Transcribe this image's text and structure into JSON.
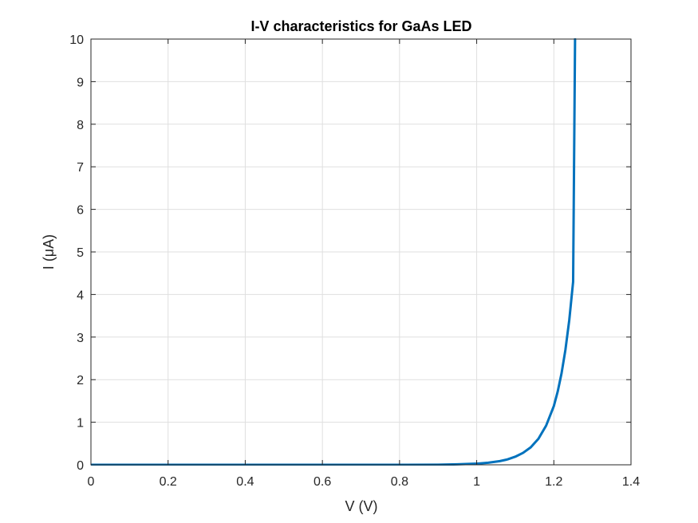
{
  "chart_data": {
    "type": "line",
    "title": "I-V characteristics for GaAs LED",
    "xlabel": "V (V)",
    "ylabel": "I (μA)",
    "xlim": [
      0,
      1.4
    ],
    "ylim": [
      0,
      10
    ],
    "xticks": [
      "0",
      "0.2",
      "0.4",
      "0.6",
      "0.8",
      "1",
      "1.2",
      "1.4"
    ],
    "yticks": [
      "0",
      "1",
      "2",
      "3",
      "4",
      "5",
      "6",
      "7",
      "8",
      "9",
      "10"
    ],
    "grid": true,
    "legend": "none",
    "series": [
      {
        "color": "#0072bd",
        "x": [
          0,
          0.2,
          0.4,
          0.6,
          0.8,
          0.9,
          0.95,
          1.0,
          1.03,
          1.06,
          1.08,
          1.1,
          1.12,
          1.14,
          1.16,
          1.18,
          1.2,
          1.21,
          1.22,
          1.23,
          1.24,
          1.25,
          1.255
        ],
        "y": [
          0,
          0,
          0,
          0,
          0,
          0.003,
          0.011,
          0.027,
          0.05,
          0.087,
          0.127,
          0.19,
          0.28,
          0.41,
          0.61,
          0.92,
          1.38,
          1.72,
          2.15,
          2.7,
          3.4,
          4.3,
          10.0
        ]
      }
    ]
  }
}
